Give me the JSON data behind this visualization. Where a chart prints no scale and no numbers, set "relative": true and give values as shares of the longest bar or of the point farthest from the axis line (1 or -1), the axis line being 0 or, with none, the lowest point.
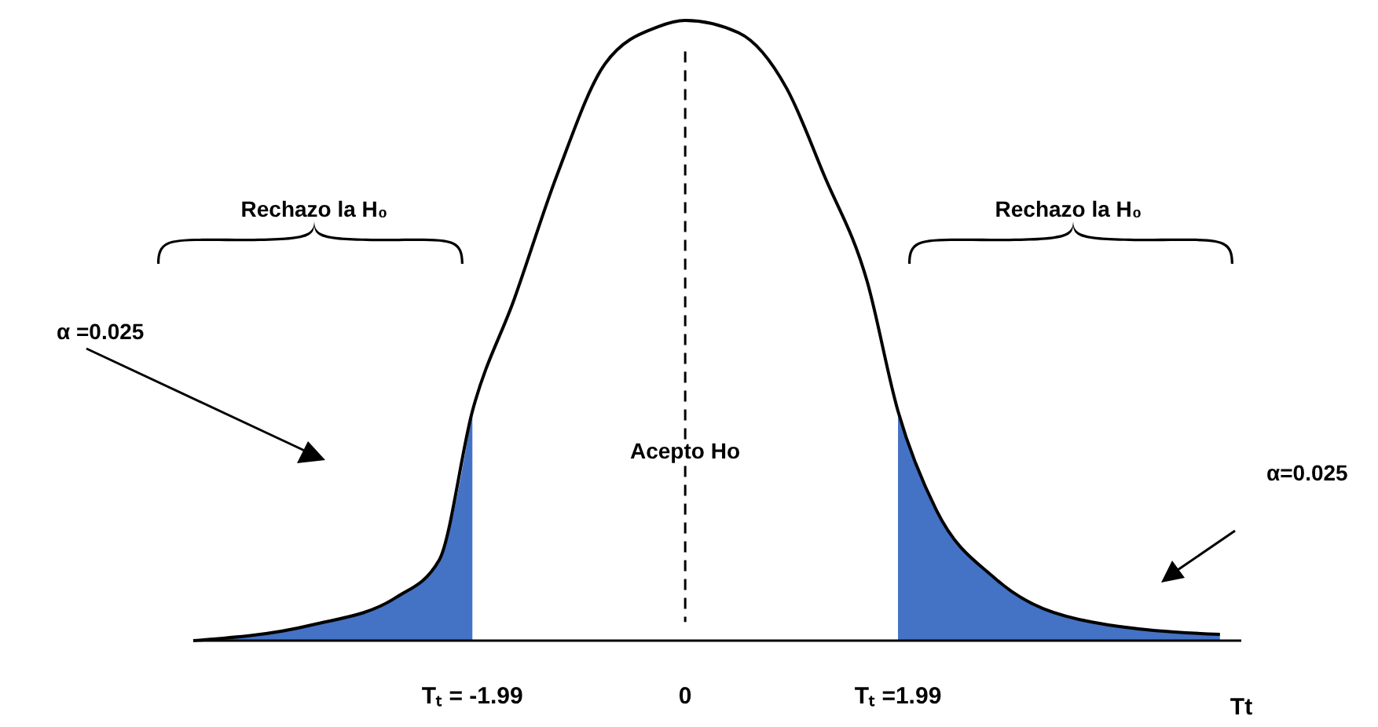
{
  "chart_data": {
    "type": "line",
    "relative": true,
    "xlabel": "Tt",
    "xlim": [
      -4.6,
      5.2
    ],
    "xticks": [
      {
        "value": -1.99,
        "label": "Tₜ = -1.99"
      },
      0,
      {
        "value": 1.99,
        "label": "Tₜ =1.99"
      }
    ],
    "series": [
      {
        "type": "area",
        "color": "#4472c4",
        "x": [
          -4.6,
          -3.5,
          -2.7,
          -2.3,
          -1.99
        ],
        "values": [
          0,
          0.025,
          0.07,
          0.13,
          0.37
        ]
      },
      {
        "type": "area",
        "color": "#4472c4",
        "x": [
          1.99,
          2.35,
          2.9,
          3.8,
          5.0
        ],
        "values": [
          0.37,
          0.21,
          0.1,
          0.03,
          0.01
        ]
      },
      {
        "color": "#000000",
        "x": [
          -4.6,
          -3.5,
          -2.7,
          -2.3,
          -1.99,
          -1.6,
          -1.2,
          -0.75,
          -0.25,
          0,
          0.5,
          0.95,
          1.3,
          1.7,
          1.99,
          2.35,
          2.9,
          3.8,
          5.0
        ],
        "values": [
          0,
          0.025,
          0.07,
          0.13,
          0.37,
          0.55,
          0.75,
          0.93,
          0.99,
          1,
          0.98,
          0.89,
          0.75,
          0.58,
          0.37,
          0.21,
          0.1,
          0.03,
          0.01
        ]
      }
    ],
    "ref_lines": [
      {
        "axis": "x",
        "value": 0,
        "line_style": "dashed"
      }
    ],
    "annotations": [
      "Rechazo la H₀",
      "Rechazo la H₀",
      "Acepto Ho",
      "α =0.025",
      "α=0.025"
    ]
  }
}
